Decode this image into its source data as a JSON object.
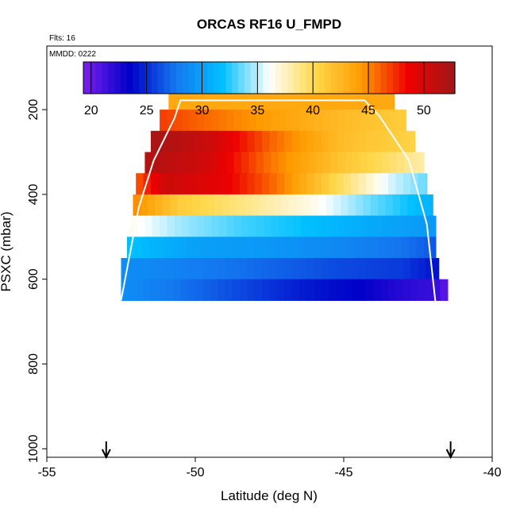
{
  "chart_data": {
    "type": "heatmap",
    "title": "ORCAS RF16 U_FMPD",
    "flights_label": "Flts: 16",
    "date_label": "MMDD: 0222",
    "xlabel": "Latitude (deg N)",
    "ylabel": "PSXC (mbar)",
    "xlim": [
      -55,
      -40
    ],
    "ylim": [
      1020,
      50
    ],
    "x_ticks": [
      -55,
      -50,
      -45,
      -40
    ],
    "x_tick_labels": [
      "-55",
      "-50",
      "-45",
      "-40"
    ],
    "y_ticks": [
      200,
      400,
      600,
      800,
      1000
    ],
    "y_tick_labels": [
      "200",
      "400",
      "600",
      "800",
      "1000"
    ],
    "colorbar": {
      "min": 19.3,
      "max": 52.8,
      "ticks": [
        20,
        25,
        30,
        35,
        40,
        45,
        50
      ],
      "tick_labels": [
        "20",
        "25",
        "30",
        "35",
        "40",
        "45",
        "50"
      ],
      "colors": [
        "#7b1ff0",
        "#0000c8",
        "#1478f0",
        "#00c0ff",
        "#ffffff",
        "#ffd84a",
        "#ff9a00",
        "#ee0000",
        "#a01818"
      ]
    },
    "x_bin_width": 0.25,
    "rows": [
      {
        "pressure": 175,
        "x_start": -50.9,
        "x_end": -43.3,
        "knots": [
          [
            -50.9,
            43.5
          ],
          [
            -43.3,
            43.5
          ]
        ]
      },
      {
        "pressure": 225,
        "x_start": -51.2,
        "x_end": -42.9,
        "knots": [
          [
            -51.2,
            47.0
          ],
          [
            -48.0,
            44.5
          ],
          [
            -45.0,
            42.2
          ],
          [
            -42.9,
            41.0
          ]
        ]
      },
      {
        "pressure": 275,
        "x_start": -51.5,
        "x_end": -42.6,
        "knots": [
          [
            -51.5,
            52.5
          ],
          [
            -49.5,
            50.5
          ],
          [
            -47.5,
            46.0
          ],
          [
            -45.0,
            42.0
          ],
          [
            -42.6,
            40.5
          ]
        ]
      },
      {
        "pressure": 325,
        "x_start": -51.7,
        "x_end": -42.3,
        "knots": [
          [
            -51.7,
            52.0
          ],
          [
            -49.5,
            50.0
          ],
          [
            -47.5,
            45.5
          ],
          [
            -45.0,
            41.5
          ],
          [
            -42.3,
            38.0
          ]
        ]
      },
      {
        "pressure": 375,
        "x_start": -52.0,
        "x_end": -42.2,
        "knots": [
          [
            -52.0,
            46.0
          ],
          [
            -51.0,
            50.5
          ],
          [
            -49.0,
            49.0
          ],
          [
            -47.0,
            45.0
          ],
          [
            -45.0,
            39.5
          ],
          [
            -43.5,
            35.5
          ],
          [
            -42.2,
            33.5
          ]
        ]
      },
      {
        "pressure": 425,
        "x_start": -52.1,
        "x_end": -42.0,
        "knots": [
          [
            -52.1,
            45.0
          ],
          [
            -50.5,
            41.0
          ],
          [
            -48.0,
            38.5
          ],
          [
            -46.0,
            36.5
          ],
          [
            -44.0,
            33.5
          ],
          [
            -42.0,
            31.0
          ]
        ]
      },
      {
        "pressure": 475,
        "x_start": -52.2,
        "x_end": -41.9,
        "knots": [
          [
            -52.2,
            36.5
          ],
          [
            -50.5,
            34.5
          ],
          [
            -48.5,
            33.0
          ],
          [
            -46.5,
            32.0
          ],
          [
            -44.0,
            30.5
          ],
          [
            -41.9,
            29.5
          ]
        ]
      },
      {
        "pressure": 525,
        "x_start": -52.3,
        "x_end": -41.9,
        "knots": [
          [
            -52.3,
            32.0
          ],
          [
            -50.0,
            30.0
          ],
          [
            -47.5,
            29.5
          ],
          [
            -45.0,
            28.5
          ],
          [
            -43.0,
            27.5
          ],
          [
            -41.9,
            26.5
          ]
        ]
      },
      {
        "pressure": 575,
        "x_start": -52.5,
        "x_end": -41.8,
        "knots": [
          [
            -52.5,
            29.0
          ],
          [
            -50.0,
            28.0
          ],
          [
            -47.5,
            27.0
          ],
          [
            -45.0,
            26.0
          ],
          [
            -43.0,
            25.5
          ],
          [
            -41.8,
            24.0
          ]
        ]
      },
      {
        "pressure": 625,
        "x_start": -52.5,
        "x_end": -41.5,
        "knots": [
          [
            -52.5,
            29.0
          ],
          [
            -50.5,
            27.5
          ],
          [
            -48.5,
            26.0
          ],
          [
            -46.5,
            24.5
          ],
          [
            -44.5,
            23.5
          ],
          [
            -42.8,
            22.0
          ],
          [
            -41.8,
            21.5
          ],
          [
            -41.5,
            19.8
          ]
        ]
      }
    ],
    "tropopause_line": {
      "color": "#ffffff",
      "points": [
        [
          -52.5,
          650
        ],
        [
          -51.9,
          430
        ],
        [
          -51.4,
          320
        ],
        [
          -50.7,
          220
        ],
        [
          -50.5,
          178
        ],
        [
          -44.3,
          178
        ],
        [
          -43.8,
          215
        ],
        [
          -42.8,
          320
        ],
        [
          -42.2,
          470
        ],
        [
          -41.9,
          660
        ]
      ]
    },
    "flight_markers": {
      "x": [
        -53.0,
        -41.4
      ]
    }
  }
}
